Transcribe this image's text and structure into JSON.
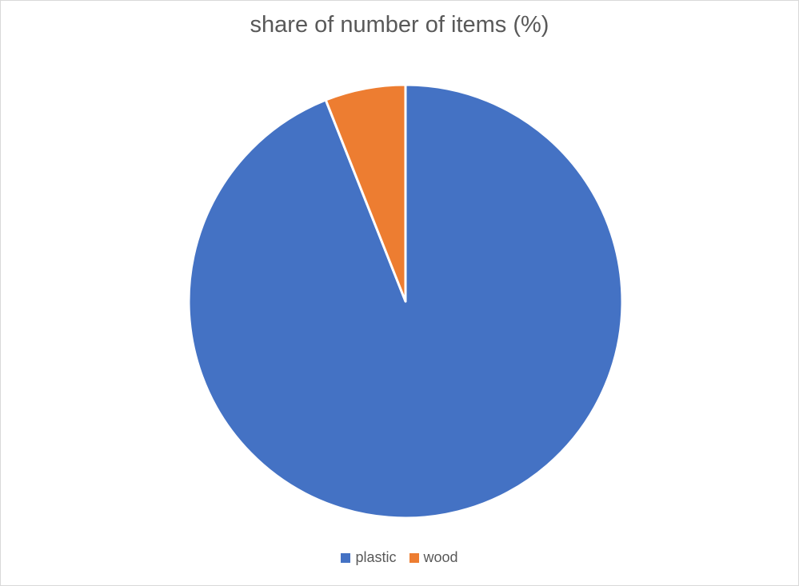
{
  "chart_data": {
    "type": "pie",
    "title": "share of number of items (%)",
    "legend_position": "bottom",
    "slices": [
      {
        "name": "plastic",
        "value": 94,
        "color": "#4472C4"
      },
      {
        "name": "wood",
        "value": 6,
        "color": "#ED7D31"
      }
    ],
    "start_angle_deg": 0,
    "direction": "clockwise"
  }
}
